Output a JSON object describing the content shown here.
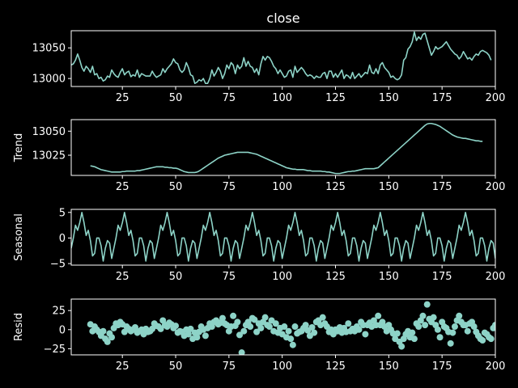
{
  "chart_data": [
    {
      "type": "line",
      "title": "close",
      "ylabel": "",
      "xlim": [
        1,
        200
      ],
      "ylim": [
        12987,
        13078
      ],
      "xticks": [
        25,
        50,
        75,
        100,
        125,
        150,
        175,
        200
      ],
      "yticks": [
        13000,
        13050
      ],
      "line_color": "#8dd3c7",
      "x_start": 1,
      "values": [
        13022,
        13024,
        13030,
        13040,
        13030,
        13018,
        13012,
        13020,
        13016,
        13010,
        13020,
        13006,
        13008,
        13000,
        13002,
        12996,
        12998,
        13004,
        13002,
        13014,
        13008,
        13004,
        13002,
        13010,
        13016,
        13006,
        13010,
        13012,
        13003,
        13006,
        13004,
        13014,
        13002,
        13008,
        13006,
        13004,
        13004,
        13004,
        13012,
        13006,
        13002,
        13004,
        13006,
        13016,
        13010,
        13016,
        13020,
        13024,
        13032,
        13026,
        13024,
        13014,
        13010,
        13014,
        13026,
        13018,
        13006,
        13004,
        12992,
        12994,
        12998,
        12996,
        13000,
        12992,
        12992,
        13000,
        13014,
        13004,
        13010,
        13018,
        13012,
        13000,
        13008,
        13022,
        13016,
        13026,
        13022,
        13008,
        13022,
        13016,
        13020,
        13034,
        13020,
        13028,
        13020,
        13018,
        13010,
        13016,
        13006,
        13024,
        13036,
        13030,
        13036,
        13034,
        13028,
        13020,
        13016,
        13008,
        13014,
        13008,
        13002,
        13004,
        13012,
        13014,
        13002,
        13020,
        13010,
        13014,
        13018,
        13014,
        13008,
        13004,
        13006,
        13004,
        13000,
        13004,
        13002,
        13002,
        13008,
        13010,
        13000,
        13012,
        13012,
        13002,
        13008,
        13002,
        13008,
        13014,
        13000,
        13006,
        13004,
        13000,
        13010,
        13000,
        13004,
        13008,
        13002,
        13006,
        13010,
        13008,
        13022,
        13010,
        13008,
        13016,
        13008,
        13022,
        13026,
        13018,
        13014,
        13010,
        13002,
        13004,
        13000,
        12998,
        13000,
        13006,
        13030,
        13034,
        13048,
        13052,
        13060,
        13076,
        13062,
        13068,
        13064,
        13072,
        13074,
        13062,
        13050,
        13038,
        13044,
        13052,
        13048,
        13050,
        13052,
        13056,
        13060,
        13054,
        13048,
        13044,
        13040,
        13038,
        13032,
        13036,
        13044,
        13038,
        13032,
        13034,
        13030,
        13036,
        13040,
        13038,
        13044,
        13046,
        13044,
        13042,
        13038,
        13030
      ],
      "grid": false
    },
    {
      "type": "line",
      "title": "",
      "ylabel": "Trend",
      "xlim": [
        1,
        200
      ],
      "ylim": [
        13004,
        13062
      ],
      "xticks": [
        25,
        50,
        75,
        100,
        125,
        150,
        175,
        200
      ],
      "yticks": [
        13025,
        13050
      ],
      "line_color": "#8dd3c7",
      "x_start": 10,
      "values": [
        13014,
        13013.5,
        13013,
        13012,
        13011,
        13010,
        13009.5,
        13009,
        13008.5,
        13008,
        13007.5,
        13007.5,
        13007.5,
        13007.5,
        13007.5,
        13008,
        13008,
        13008.5,
        13008.5,
        13008.5,
        13008.5,
        13008.5,
        13009,
        13009,
        13009.5,
        13010,
        13010.5,
        13011,
        13011.5,
        13012,
        13012.5,
        13013,
        13013,
        13013,
        13013,
        13012.5,
        13012.5,
        13012,
        13012,
        13011.5,
        13011.5,
        13011,
        13010,
        13009,
        13008,
        13007.5,
        13007,
        13007,
        13007,
        13007,
        13007.5,
        13008.5,
        13010,
        13011.5,
        13013,
        13014.5,
        13016,
        13017.5,
        13019,
        13020.5,
        13022,
        13023,
        13024,
        13025,
        13025.5,
        13026,
        13026.5,
        13027,
        13027.5,
        13028,
        13028,
        13028,
        13028,
        13028,
        13028,
        13027.5,
        13027,
        13026.5,
        13026,
        13025,
        13024,
        13023,
        13022,
        13021,
        13020,
        13019,
        13018,
        13017,
        13016,
        13015,
        13014,
        13013,
        13012,
        13011.5,
        13011,
        13010.5,
        13010.5,
        13010,
        13010,
        13010,
        13010,
        13009.5,
        13009,
        13009,
        13008.5,
        13008.5,
        13008.5,
        13008.5,
        13008.5,
        13008,
        13008,
        13007.5,
        13007.5,
        13007,
        13006.5,
        13006,
        13006,
        13006,
        13006.5,
        13007,
        13007.5,
        13008,
        13008,
        13008.5,
        13008.5,
        13009,
        13009.5,
        13010,
        13010.5,
        13011,
        13011,
        13011,
        13011,
        13011,
        13011.5,
        13012,
        13014,
        13016,
        13018,
        13020,
        13022,
        13024,
        13026,
        13028,
        13030,
        13032,
        13034,
        13036,
        13038,
        13040,
        13042,
        13044,
        13046,
        13048,
        13050,
        13052,
        13054,
        13056,
        13057.5,
        13058,
        13058,
        13057.5,
        13057,
        13056,
        13055,
        13053.5,
        13052,
        13050.5,
        13049,
        13047.5,
        13046,
        13045,
        13044,
        13043.5,
        13043,
        13042.5,
        13042.5,
        13042,
        13041.5,
        13041,
        13040.5,
        13040,
        13040,
        13039.5,
        13039.5
      ],
      "grid": false
    },
    {
      "type": "line",
      "title": "",
      "ylabel": "Seasonal",
      "xlim": [
        1,
        200
      ],
      "ylim": [
        -5.3,
        5.6
      ],
      "xticks": [
        25,
        50,
        75,
        100,
        125,
        150,
        175,
        200
      ],
      "yticks": [
        -5,
        0,
        5
      ],
      "line_color": "#8dd3c7",
      "x_start": 1,
      "season_period": 20,
      "season_pattern": [
        -2,
        0,
        2.5,
        1.5,
        3,
        5,
        3,
        0.5,
        1.5,
        -0.5,
        -3.5,
        -3,
        0,
        0,
        -1.5,
        -4.5,
        -2,
        -0.5,
        -1,
        -4
      ],
      "grid": false
    },
    {
      "type": "scatter",
      "title": "",
      "ylabel": "Resid",
      "xlim": [
        1,
        200
      ],
      "ylim": [
        -33,
        40
      ],
      "xticks": [
        25,
        50,
        75,
        100,
        125,
        150,
        175,
        200
      ],
      "yticks": [
        -25,
        0,
        25
      ],
      "marker_color": "#8dd3c7",
      "x_start": 10,
      "values": [
        7,
        -2,
        4,
        0,
        -3,
        -8,
        -2,
        -12,
        -16,
        -5,
        -10,
        2,
        8,
        6,
        10,
        7,
        -3,
        4,
        1,
        -2,
        0,
        3,
        -4,
        -2,
        0,
        -6,
        1,
        -3,
        -2,
        1,
        8,
        5,
        4,
        1,
        12,
        6,
        4,
        9,
        7,
        2,
        5,
        -4,
        -2,
        -3,
        -8,
        0,
        -6,
        1,
        -12,
        -4,
        -10,
        -3,
        4,
        0,
        -8,
        2,
        8,
        4,
        10,
        12,
        7,
        9,
        15,
        8,
        6,
        -2,
        4,
        18,
        5,
        10,
        -7,
        -30,
        -2,
        6,
        10,
        4,
        15,
        13,
        -3,
        8,
        2,
        10,
        16,
        6,
        4,
        12,
        -2,
        8,
        -4,
        2,
        -6,
        4,
        -10,
        -2,
        -12,
        -20,
        4,
        -5,
        -3,
        -2,
        2,
        6,
        -1,
        -8,
        3,
        -4,
        10,
        12,
        6,
        16,
        8,
        4,
        -3,
        0,
        -6,
        0,
        -2,
        3,
        -4,
        2,
        -3,
        8,
        -2,
        1,
        -2,
        4,
        0,
        10,
        6,
        -6,
        6,
        9,
        4,
        12,
        6,
        18,
        6,
        10,
        4,
        -2,
        6,
        0,
        -5,
        -12,
        -5,
        -16,
        -22,
        -12,
        -6,
        -2,
        -10,
        -4,
        -12,
        8,
        4,
        12,
        18,
        6,
        33,
        14,
        10,
        16,
        6,
        0,
        -10,
        10,
        4,
        2,
        -3,
        -18,
        -4,
        4,
        12,
        18,
        10,
        6,
        6,
        -2,
        8,
        10,
        4,
        -3,
        -8,
        -12,
        -14,
        -4,
        -6,
        -10,
        -12,
        2,
        6
      ]
    }
  ]
}
